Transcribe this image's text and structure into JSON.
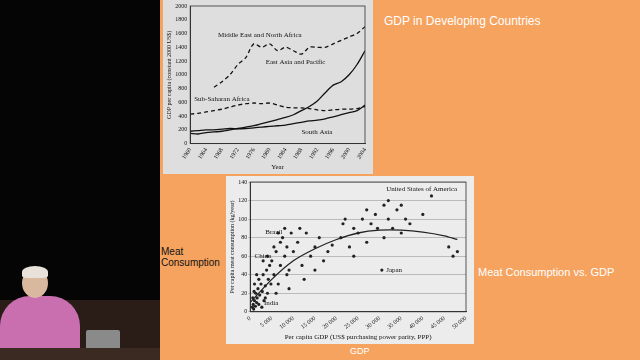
{
  "slide": {
    "title": "GDP in Developing Countries",
    "side_label": "Meat Consumption",
    "chart_caption": "Meat Consumption vs. GDP",
    "bottom_label": "GDP"
  },
  "chart_data": [
    {
      "type": "line",
      "x_label": "Year",
      "y_label": "GDP per capita (constant 2000 US$)",
      "x": [
        1960,
        1962,
        1964,
        1966,
        1968,
        1970,
        1972,
        1974,
        1976,
        1978,
        1980,
        1982,
        1984,
        1986,
        1988,
        1990,
        1992,
        1994,
        1996,
        1998,
        2000,
        2002,
        2004
      ],
      "xlim": [
        1960,
        2004
      ],
      "xticks": [
        1960,
        1964,
        1968,
        1972,
        1976,
        1980,
        1984,
        1988,
        1992,
        1996,
        2000,
        2004
      ],
      "ylim": [
        0,
        2000
      ],
      "yticks": [
        0,
        200,
        400,
        600,
        800,
        1000,
        1200,
        1400,
        1600,
        1800,
        2000
      ],
      "grid": false,
      "series": [
        {
          "name": "Middle East and North Africa",
          "color": "#111111",
          "line_style": "dashed",
          "values": [
            null,
            null,
            null,
            820,
            900,
            1000,
            1150,
            1250,
            1450,
            1400,
            1450,
            1350,
            1400,
            1350,
            1300,
            1400,
            1400,
            1400,
            1450,
            1500,
            1550,
            1600,
            1700
          ]
        },
        {
          "name": "East Asia and Pacific",
          "color": "#111111",
          "line_style": "solid",
          "values": [
            150,
            140,
            160,
            170,
            180,
            200,
            220,
            240,
            260,
            290,
            320,
            350,
            380,
            420,
            480,
            540,
            620,
            740,
            850,
            900,
            1000,
            1150,
            1350
          ]
        },
        {
          "name": "Sub-Saharan Africa",
          "color": "#111111",
          "line_style": "dashed",
          "values": [
            430,
            440,
            460,
            480,
            500,
            530,
            560,
            580,
            590,
            580,
            590,
            560,
            530,
            520,
            520,
            510,
            490,
            480,
            490,
            500,
            500,
            510,
            540
          ]
        },
        {
          "name": "South Asia",
          "color": "#111111",
          "line_style": "solid",
          "values": [
            180,
            190,
            200,
            200,
            210,
            220,
            215,
            220,
            230,
            240,
            250,
            260,
            270,
            290,
            310,
            330,
            340,
            360,
            390,
            420,
            450,
            480,
            560
          ]
        }
      ],
      "annotations": [
        {
          "text": "Middle East and North Africa",
          "x": 1967,
          "y": 1580
        },
        {
          "text": "East Asia and Pacific",
          "x": 1979,
          "y": 1180
        },
        {
          "text": "Sub-Saharan Africa",
          "x": 1961,
          "y": 650
        },
        {
          "text": "South Asia",
          "x": 1988,
          "y": 170
        }
      ]
    },
    {
      "type": "scatter",
      "x_label": "Per capita GDP (US$ purchasing power parity, PPP)",
      "y_label": "Per capita meat consumption (kg/year)",
      "xlim": [
        0,
        50000
      ],
      "xticks": [
        0,
        {
          "value": 5000,
          "label": "5 000"
        },
        {
          "value": 10000,
          "label": "10 000"
        },
        {
          "value": 15000,
          "label": "15 000"
        },
        {
          "value": 20000,
          "label": "20 000"
        },
        {
          "value": 25000,
          "label": "25 000"
        },
        {
          "value": 30000,
          "label": "30 000"
        },
        {
          "value": 35000,
          "label": "35 000"
        },
        {
          "value": 40000,
          "label": "40 000"
        },
        {
          "value": 45000,
          "label": "45 000"
        },
        {
          "value": 50000,
          "label": "50 000"
        }
      ],
      "ylim": [
        0,
        140
      ],
      "yticks": [
        0,
        20,
        40,
        60,
        80,
        100,
        120,
        140
      ],
      "grid": "y",
      "series": [
        {
          "type": "scatter",
          "marker": "circle",
          "color": "#222222",
          "x": [
            500,
            700,
            800,
            1000,
            1200,
            1300,
            1500,
            1600,
            1800,
            2000,
            2200,
            2500,
            2700,
            2800,
            3000,
            3200,
            3500,
            3800,
            4000,
            4200,
            4500,
            4800,
            1000,
            1500,
            2000,
            3000,
            3500,
            4000,
            600,
            900,
            5000,
            5500,
            6000,
            6500,
            7000,
            7500,
            8000,
            8500,
            9000,
            9500,
            6000,
            7000,
            8000,
            9000,
            10000,
            5500,
            6500,
            8500,
            11000,
            11500,
            12000,
            13000,
            14000,
            15000,
            16000,
            17000,
            18000,
            19000,
            12500,
            15000,
            21000,
            21500,
            22000,
            23000,
            24000,
            25000,
            26000,
            27000,
            28000,
            29000,
            24000,
            27000,
            29500,
            30500,
            31000,
            32000,
            32000,
            33000,
            34000,
            35000,
            36000,
            37000,
            40000,
            42000,
            46000,
            47000,
            48000,
            35000,
            31000
          ],
          "values": [
            5,
            8,
            3,
            12,
            6,
            20,
            10,
            15,
            25,
            8,
            18,
            30,
            5,
            22,
            40,
            12,
            28,
            45,
            20,
            35,
            50,
            30,
            30,
            40,
            35,
            55,
            15,
            60,
            15,
            22,
            55,
            40,
            65,
            30,
            50,
            80,
            60,
            70,
            45,
            85,
            20,
            75,
            90,
            25,
            65,
            70,
            85,
            40,
            75,
            90,
            50,
            85,
            60,
            70,
            80,
            55,
            65,
            72,
            35,
            45,
            80,
            95,
            100,
            70,
            90,
            85,
            100,
            75,
            95,
            105,
            60,
            110,
            90,
            45,
            80,
            100,
            120,
            90,
            110,
            85,
            100,
            95,
            105,
            125,
            70,
            60,
            65,
            115,
            115
          ]
        },
        {
          "type": "line",
          "line_style": "solid",
          "color": "#222222",
          "x": [
            0,
            5000,
            10000,
            15000,
            20000,
            25000,
            30000,
            35000,
            40000,
            45000,
            48000
          ],
          "values": [
            10,
            35,
            55,
            68,
            78,
            85,
            88,
            88,
            86,
            82,
            78
          ]
        }
      ],
      "annotations": [
        {
          "text": "United States of America",
          "x": 31500,
          "y": 132
        },
        {
          "text": "Brazil",
          "x": 3500,
          "y": 86
        },
        {
          "text": "China",
          "x": 1000,
          "y": 60
        },
        {
          "text": "India",
          "x": 3200,
          "y": 9
        },
        {
          "text": "Japan",
          "x": 31500,
          "y": 45
        }
      ]
    }
  ]
}
